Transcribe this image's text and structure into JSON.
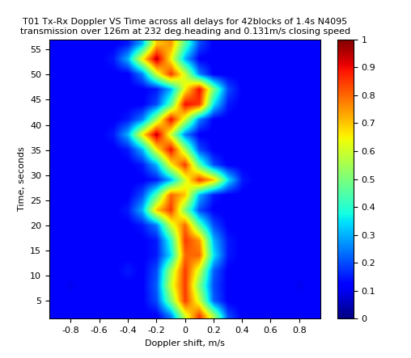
{
  "chart_data": {
    "type": "heatmap",
    "title": "T01 Tx-Rx Doppler VS Time across all delays for 42blocks of 1.4s N4095\ntransmission over 126m at 232 deg.heading and 0.131m/s closing speed",
    "x_label": "Doppler shift, m/s",
    "y_label": "Time, seconds",
    "x": [
      -0.9,
      -0.8,
      -0.7,
      -0.6,
      -0.5,
      -0.4,
      -0.3,
      -0.2,
      -0.1,
      0,
      0.1,
      0.2,
      0.3,
      0.4,
      0.5,
      0.6,
      0.7,
      0.8,
      0.9
    ],
    "y": [
      2,
      5,
      8,
      11,
      14,
      17,
      20,
      23,
      26,
      29,
      32,
      35,
      38,
      41,
      44,
      47,
      50,
      53,
      56
    ],
    "cells": [
      [
        0.12,
        0.12,
        0.12,
        0.12,
        0.12,
        0.12,
        0.12,
        0.12,
        0.25,
        0.6,
        0.85,
        0.55,
        0.2,
        0.12,
        0.12,
        0.12,
        0.12,
        0.12,
        0.12
      ],
      [
        0.12,
        0.12,
        0.12,
        0.12,
        0.12,
        0.12,
        0.12,
        0.2,
        0.5,
        0.85,
        0.6,
        0.22,
        0.12,
        0.12,
        0.12,
        0.12,
        0.12,
        0.12,
        0.12
      ],
      [
        0.12,
        0.1,
        0.12,
        0.12,
        0.12,
        0.12,
        0.12,
        0.22,
        0.6,
        0.85,
        0.5,
        0.2,
        0.12,
        0.12,
        0.12,
        0.12,
        0.12,
        0.1,
        0.12
      ],
      [
        0.12,
        0.12,
        0.12,
        0.12,
        0.12,
        0.15,
        0.12,
        0.2,
        0.55,
        0.85,
        0.6,
        0.22,
        0.12,
        0.12,
        0.12,
        0.12,
        0.12,
        0.12,
        0.12
      ],
      [
        0.12,
        0.12,
        0.12,
        0.12,
        0.12,
        0.12,
        0.12,
        0.15,
        0.35,
        0.8,
        0.8,
        0.35,
        0.15,
        0.12,
        0.12,
        0.12,
        0.12,
        0.12,
        0.12
      ],
      [
        0.12,
        0.12,
        0.12,
        0.12,
        0.12,
        0.12,
        0.12,
        0.15,
        0.4,
        0.85,
        0.75,
        0.3,
        0.15,
        0.12,
        0.12,
        0.12,
        0.12,
        0.12,
        0.12
      ],
      [
        0.12,
        0.12,
        0.12,
        0.12,
        0.12,
        0.12,
        0.15,
        0.25,
        0.6,
        0.8,
        0.45,
        0.2,
        0.12,
        0.12,
        0.12,
        0.12,
        0.12,
        0.12,
        0.12
      ],
      [
        0.12,
        0.12,
        0.12,
        0.12,
        0.12,
        0.15,
        0.3,
        0.7,
        0.85,
        0.5,
        0.2,
        0.12,
        0.12,
        0.12,
        0.12,
        0.12,
        0.12,
        0.12,
        0.12
      ],
      [
        0.12,
        0.12,
        0.12,
        0.12,
        0.12,
        0.12,
        0.2,
        0.45,
        0.8,
        0.7,
        0.3,
        0.15,
        0.12,
        0.12,
        0.12,
        0.12,
        0.12,
        0.12,
        0.12
      ],
      [
        0.12,
        0.12,
        0.12,
        0.12,
        0.12,
        0.12,
        0.12,
        0.15,
        0.3,
        0.6,
        0.85,
        0.7,
        0.35,
        0.15,
        0.12,
        0.12,
        0.12,
        0.12,
        0.12
      ],
      [
        0.12,
        0.12,
        0.12,
        0.12,
        0.12,
        0.12,
        0.15,
        0.3,
        0.65,
        0.85,
        0.45,
        0.2,
        0.12,
        0.12,
        0.12,
        0.12,
        0.12,
        0.12,
        0.12
      ],
      [
        0.12,
        0.12,
        0.12,
        0.12,
        0.12,
        0.15,
        0.3,
        0.65,
        0.9,
        0.55,
        0.2,
        0.12,
        0.12,
        0.12,
        0.12,
        0.12,
        0.12,
        0.12,
        0.12
      ],
      [
        0.12,
        0.12,
        0.12,
        0.12,
        0.15,
        0.3,
        0.65,
        0.95,
        0.6,
        0.25,
        0.12,
        0.12,
        0.12,
        0.12,
        0.12,
        0.12,
        0.12,
        0.12,
        0.12
      ],
      [
        0.12,
        0.12,
        0.12,
        0.12,
        0.12,
        0.15,
        0.25,
        0.55,
        0.9,
        0.6,
        0.25,
        0.12,
        0.12,
        0.12,
        0.12,
        0.12,
        0.12,
        0.12,
        0.12
      ],
      [
        0.12,
        0.12,
        0.12,
        0.12,
        0.12,
        0.12,
        0.12,
        0.2,
        0.45,
        0.9,
        0.85,
        0.35,
        0.15,
        0.12,
        0.12,
        0.12,
        0.12,
        0.12,
        0.12
      ],
      [
        0.12,
        0.12,
        0.12,
        0.12,
        0.12,
        0.12,
        0.12,
        0.15,
        0.3,
        0.65,
        0.9,
        0.5,
        0.2,
        0.12,
        0.12,
        0.12,
        0.12,
        0.12,
        0.12
      ],
      [
        0.12,
        0.12,
        0.12,
        0.12,
        0.12,
        0.12,
        0.25,
        0.6,
        0.85,
        0.6,
        0.25,
        0.12,
        0.12,
        0.12,
        0.12,
        0.12,
        0.12,
        0.12,
        0.12
      ],
      [
        0.12,
        0.12,
        0.12,
        0.12,
        0.15,
        0.3,
        0.65,
        0.95,
        0.65,
        0.3,
        0.12,
        0.12,
        0.12,
        0.12,
        0.12,
        0.12,
        0.12,
        0.12,
        0.12
      ],
      [
        0.12,
        0.12,
        0.12,
        0.12,
        0.12,
        0.15,
        0.3,
        0.7,
        0.75,
        0.45,
        0.2,
        0.12,
        0.12,
        0.12,
        0.12,
        0.12,
        0.12,
        0.12,
        0.12
      ]
    ],
    "xlim": [
      -0.95,
      0.95
    ],
    "ylim": [
      1.5,
      57
    ],
    "xticks": [
      -0.8,
      -0.6,
      -0.4,
      -0.2,
      0,
      0.2,
      0.4,
      0.6,
      0.8
    ],
    "yticks": [
      5,
      10,
      15,
      20,
      25,
      30,
      35,
      40,
      45,
      50,
      55
    ],
    "colorbar_range": [
      0,
      1
    ],
    "colorbar_ticks": [
      0,
      0.1,
      0.2,
      0.3,
      0.4,
      0.5,
      0.6,
      0.7,
      0.8,
      0.9,
      1
    ]
  }
}
